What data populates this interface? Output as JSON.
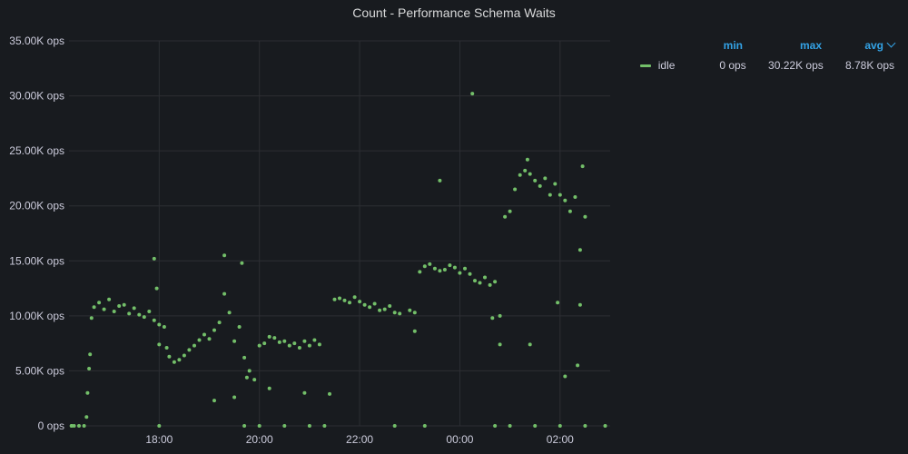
{
  "chart_data": {
    "type": "scatter",
    "title": "Count - Performance Schema Waits",
    "y_ticks": [
      "0 ops",
      "5.00K ops",
      "10.00K ops",
      "15.00K ops",
      "20.00K ops",
      "25.00K ops",
      "30.00K ops",
      "35.00K ops"
    ],
    "ylim": [
      0,
      35000
    ],
    "x_ticks": [
      "18:00",
      "20:00",
      "22:00",
      "00:00",
      "02:00"
    ],
    "x_range_hours": [
      16.2,
      27.0
    ],
    "grid": true,
    "series": [
      {
        "name": "idle",
        "color": "#73bf69",
        "points": [
          [
            16.25,
            0
          ],
          [
            16.3,
            0
          ],
          [
            16.4,
            0
          ],
          [
            16.5,
            0
          ],
          [
            16.55,
            800
          ],
          [
            16.57,
            3000
          ],
          [
            16.6,
            5200
          ],
          [
            16.62,
            6500
          ],
          [
            16.65,
            9800
          ],
          [
            16.7,
            10800
          ],
          [
            16.8,
            11200
          ],
          [
            16.9,
            10600
          ],
          [
            17.0,
            11500
          ],
          [
            17.1,
            10400
          ],
          [
            17.2,
            10900
          ],
          [
            17.3,
            11000
          ],
          [
            17.4,
            10200
          ],
          [
            17.5,
            10700
          ],
          [
            17.6,
            10100
          ],
          [
            17.7,
            9900
          ],
          [
            17.8,
            10400
          ],
          [
            17.9,
            9600
          ],
          [
            17.95,
            12500
          ],
          [
            18.0,
            9200
          ],
          [
            18.1,
            9000
          ],
          [
            18.15,
            7100
          ],
          [
            18.2,
            6300
          ],
          [
            18.3,
            5800
          ],
          [
            18.4,
            6000
          ],
          [
            18.5,
            6400
          ],
          [
            18.6,
            6900
          ],
          [
            18.7,
            7300
          ],
          [
            18.8,
            7800
          ],
          [
            18.9,
            8300
          ],
          [
            19.0,
            7900
          ],
          [
            19.1,
            8700
          ],
          [
            19.2,
            9400
          ],
          [
            19.3,
            12000
          ],
          [
            19.4,
            10300
          ],
          [
            19.5,
            7700
          ],
          [
            19.6,
            9000
          ],
          [
            19.7,
            6200
          ],
          [
            19.8,
            5000
          ],
          [
            19.9,
            4200
          ],
          [
            20.0,
            7300
          ],
          [
            20.1,
            7500
          ],
          [
            20.2,
            8100
          ],
          [
            20.3,
            8000
          ],
          [
            20.4,
            7600
          ],
          [
            20.5,
            7700
          ],
          [
            20.6,
            7300
          ],
          [
            20.7,
            7500
          ],
          [
            20.8,
            7100
          ],
          [
            20.9,
            7700
          ],
          [
            21.0,
            7300
          ],
          [
            21.1,
            7800
          ],
          [
            21.2,
            7400
          ],
          [
            21.5,
            11500
          ],
          [
            21.6,
            11600
          ],
          [
            21.7,
            11400
          ],
          [
            21.8,
            11200
          ],
          [
            21.9,
            11700
          ],
          [
            22.0,
            11300
          ],
          [
            22.1,
            11000
          ],
          [
            22.2,
            10800
          ],
          [
            22.3,
            11100
          ],
          [
            22.4,
            10500
          ],
          [
            22.5,
            10600
          ],
          [
            22.6,
            10900
          ],
          [
            22.7,
            10300
          ],
          [
            22.8,
            10200
          ],
          [
            23.0,
            10500
          ],
          [
            23.1,
            10300
          ],
          [
            23.2,
            14000
          ],
          [
            23.3,
            14500
          ],
          [
            23.4,
            14700
          ],
          [
            23.5,
            14300
          ],
          [
            23.6,
            14100
          ],
          [
            23.7,
            14200
          ],
          [
            23.8,
            14600
          ],
          [
            23.9,
            14400
          ],
          [
            24.0,
            13900
          ],
          [
            24.1,
            14300
          ],
          [
            24.2,
            13800
          ],
          [
            24.3,
            13200
          ],
          [
            24.4,
            13000
          ],
          [
            24.5,
            13500
          ],
          [
            24.6,
            12800
          ],
          [
            24.7,
            13100
          ],
          [
            24.8,
            10000
          ],
          [
            24.9,
            19000
          ],
          [
            25.0,
            19500
          ],
          [
            25.1,
            21500
          ],
          [
            25.2,
            22800
          ],
          [
            25.3,
            23200
          ],
          [
            25.4,
            22900
          ],
          [
            25.5,
            22300
          ],
          [
            25.6,
            21800
          ],
          [
            25.7,
            22500
          ],
          [
            25.8,
            21000
          ],
          [
            25.9,
            22000
          ],
          [
            26.0,
            21000
          ],
          [
            26.1,
            20500
          ],
          [
            26.2,
            19500
          ],
          [
            26.3,
            20800
          ],
          [
            26.4,
            16000
          ],
          [
            16.25,
            0
          ],
          [
            18.0,
            0
          ],
          [
            19.7,
            0
          ],
          [
            20.0,
            0
          ],
          [
            20.5,
            0
          ],
          [
            21.0,
            0
          ],
          [
            21.3,
            0
          ],
          [
            22.7,
            0
          ],
          [
            23.3,
            0
          ],
          [
            24.7,
            0
          ],
          [
            25.0,
            0
          ],
          [
            25.5,
            0
          ],
          [
            26.0,
            0
          ],
          [
            26.5,
            0
          ],
          [
            26.9,
            0
          ],
          [
            17.9,
            15200
          ],
          [
            19.3,
            15500
          ],
          [
            19.65,
            14800
          ],
          [
            23.6,
            22300
          ],
          [
            24.25,
            30200
          ],
          [
            25.35,
            24200
          ],
          [
            25.95,
            11200
          ],
          [
            26.45,
            23600
          ],
          [
            18.0,
            7400
          ],
          [
            19.1,
            2300
          ],
          [
            19.5,
            2600
          ],
          [
            19.75,
            4400
          ],
          [
            20.2,
            3400
          ],
          [
            20.9,
            3000
          ],
          [
            21.4,
            2900
          ],
          [
            24.8,
            7400
          ],
          [
            25.4,
            7400
          ],
          [
            26.1,
            4500
          ],
          [
            26.35,
            5500
          ],
          [
            26.4,
            11000
          ],
          [
            26.5,
            19000
          ],
          [
            24.65,
            9800
          ],
          [
            23.1,
            8600
          ]
        ]
      }
    ]
  },
  "legend": {
    "headers": {
      "min": "min",
      "max": "max",
      "avg": "avg"
    },
    "rows": [
      {
        "name": "idle",
        "min": "0 ops",
        "max": "30.22K ops",
        "avg": "8.78K ops"
      }
    ]
  }
}
